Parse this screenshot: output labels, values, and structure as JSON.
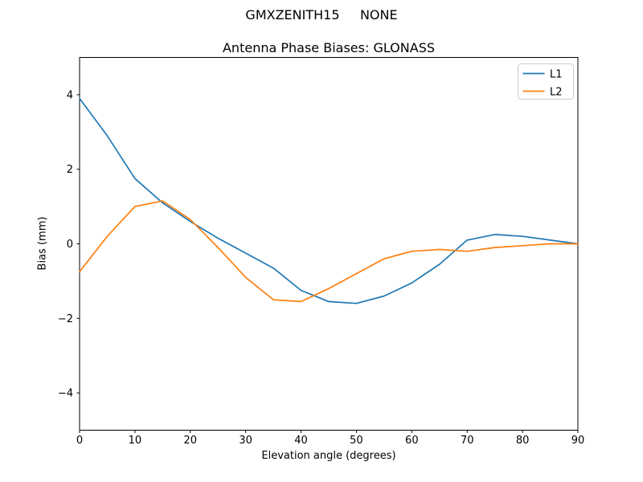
{
  "figure": {
    "suptitle": "GMXZENITH15     NONE",
    "background": "#ffffff"
  },
  "chart_data": {
    "type": "line",
    "title": "Antenna Phase Biases: GLONASS",
    "xlabel": "Elevation angle (degrees)",
    "ylabel": "Bias (mm)",
    "xlim": [
      0,
      90
    ],
    "ylim": [
      -5,
      5
    ],
    "grid": false,
    "legend_position": "upper right",
    "xticks": [
      0,
      10,
      20,
      30,
      40,
      50,
      60,
      70,
      80,
      90
    ],
    "xtick_labels": [
      "0",
      "10",
      "20",
      "30",
      "40",
      "50",
      "60",
      "70",
      "80",
      "90"
    ],
    "yticks": [
      -4,
      -2,
      0,
      2,
      4
    ],
    "ytick_labels": [
      "−4",
      "−2",
      "0",
      "2",
      "4"
    ],
    "x": [
      0,
      5,
      10,
      15,
      20,
      25,
      30,
      35,
      40,
      45,
      50,
      55,
      60,
      65,
      70,
      75,
      80,
      85,
      90
    ],
    "series": [
      {
        "name": "L1",
        "color": "#1f77b4",
        "values": [
          3.9,
          2.9,
          1.75,
          1.1,
          0.6,
          0.15,
          -0.25,
          -0.65,
          -1.25,
          -1.55,
          -1.6,
          -1.4,
          -1.05,
          -0.55,
          0.1,
          0.25,
          0.2,
          0.1,
          0.0
        ]
      },
      {
        "name": "L2",
        "color": "#ff7f0e",
        "values": [
          -0.75,
          0.2,
          1.0,
          1.15,
          0.65,
          -0.1,
          -0.9,
          -1.5,
          -1.55,
          -1.2,
          -0.8,
          -0.4,
          -0.2,
          -0.15,
          -0.2,
          -0.1,
          -0.05,
          0.0,
          0.0
        ]
      }
    ]
  }
}
